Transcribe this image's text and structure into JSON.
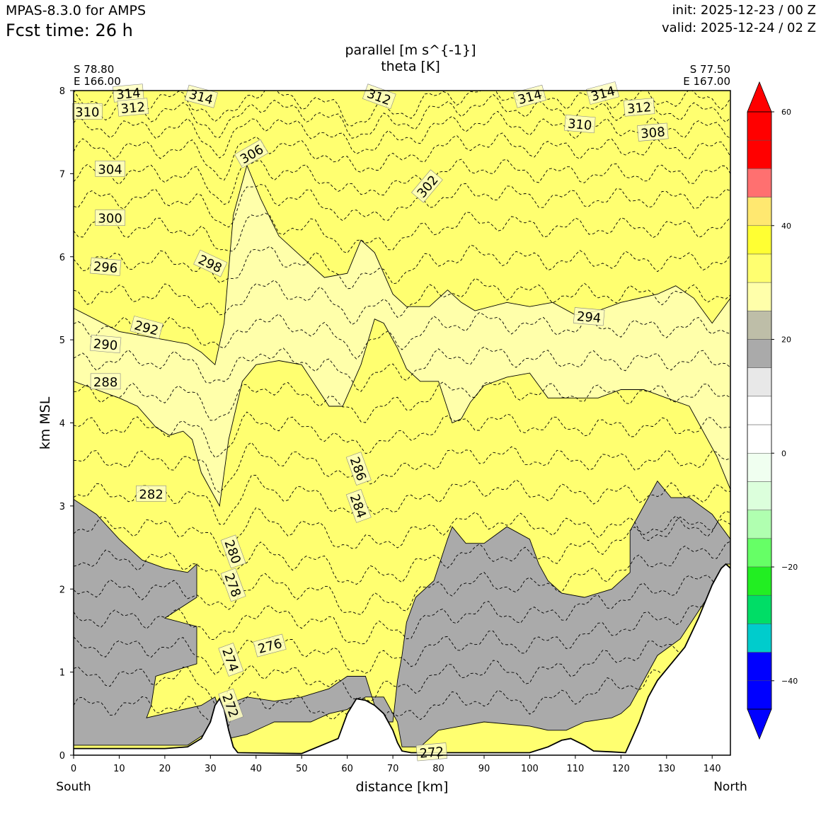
{
  "header": {
    "model": "MPAS-8.3.0 for AMPS",
    "fcst_time": "Fcst time:   26 h",
    "init": "init: 2025-12-23 / 00 Z",
    "valid": "valid: 2025-12-24 / 02 Z"
  },
  "chart_data": {
    "type": "heatmap",
    "title_lines": [
      "parallel [m s^{-1}]",
      "theta [K]"
    ],
    "xlabel": "distance [km]",
    "ylabel": "km MSL",
    "xlim": [
      0,
      144
    ],
    "ylim": [
      0,
      8
    ],
    "x_ticks": [
      0,
      10,
      20,
      30,
      40,
      50,
      60,
      70,
      80,
      90,
      100,
      110,
      120,
      130,
      140
    ],
    "y_ticks": [
      0,
      1,
      2,
      3,
      4,
      5,
      6,
      7,
      8
    ],
    "endpoints": {
      "left": {
        "lat": "S 78.80",
        "lon": "E 166.00",
        "direction": "South"
      },
      "right": {
        "lat": "S 77.50",
        "lon": "E 167.00",
        "direction": "North"
      }
    },
    "colorbar": {
      "ticks": [
        60,
        40,
        20,
        0,
        -20,
        -40
      ],
      "bins_top_to_bottom": [
        {
          "range": [
            55,
            60
          ],
          "color": "#ff0000"
        },
        {
          "range": [
            50,
            55
          ],
          "color": "#ff0000"
        },
        {
          "range": [
            45,
            50
          ],
          "color": "#ff7070"
        },
        {
          "range": [
            40,
            45
          ],
          "color": "#ffe870"
        },
        {
          "range": [
            35,
            40
          ],
          "color": "#ffff33"
        },
        {
          "range": [
            30,
            35
          ],
          "color": "#ffff70"
        },
        {
          "range": [
            25,
            30
          ],
          "color": "#ffffaa"
        },
        {
          "range": [
            20,
            25
          ],
          "color": "#bebea8"
        },
        {
          "range": [
            15,
            20
          ],
          "color": "#aaaaaa"
        },
        {
          "range": [
            10,
            15
          ],
          "color": "#e8e8e8"
        },
        {
          "range": [
            5,
            10
          ],
          "color": "#ffffff"
        },
        {
          "range": [
            0,
            5
          ],
          "color": "#ffffff"
        },
        {
          "range": [
            -5,
            0
          ],
          "color": "#f0fff0"
        },
        {
          "range": [
            -10,
            -5
          ],
          "color": "#dcffdc"
        },
        {
          "range": [
            -15,
            -10
          ],
          "color": "#b0ffb0"
        },
        {
          "range": [
            -20,
            -15
          ],
          "color": "#66ff66"
        },
        {
          "range": [
            -25,
            -20
          ],
          "color": "#22ee22"
        },
        {
          "range": [
            -30,
            -25
          ],
          "color": "#00dd66"
        },
        {
          "range": [
            -35,
            -30
          ],
          "color": "#00cccc"
        },
        {
          "range": [
            -40,
            -35
          ],
          "color": "#0000ff"
        },
        {
          "range": [
            -45,
            -40
          ],
          "color": "#0000ff"
        }
      ],
      "extend_top_color": "#ff0000",
      "extend_bottom_color": "#0000ff"
    },
    "wind_fill_bands": [
      {
        "level": 15,
        "color": "#aaaaaa",
        "boundary": [
          [
            0,
            3.08
          ],
          [
            5,
            2.9
          ],
          [
            10,
            2.6
          ],
          [
            15,
            2.35
          ],
          [
            20,
            2.25
          ],
          [
            25,
            2.2
          ],
          [
            27,
            2.3
          ],
          [
            27,
            1.9
          ],
          [
            20,
            1.65
          ],
          [
            27,
            1.55
          ],
          [
            27,
            1.1
          ],
          [
            18,
            0.95
          ],
          [
            17,
            0.6
          ],
          [
            16,
            0.45
          ],
          [
            20,
            0.5
          ],
          [
            28,
            0.6
          ],
          [
            31,
            0.7
          ],
          [
            34,
            0.2
          ],
          [
            38,
            0.25
          ],
          [
            44,
            0.4
          ],
          [
            52,
            0.4
          ],
          [
            56,
            0.5
          ],
          [
            60,
            0.55
          ],
          [
            64,
            0.7
          ],
          [
            68,
            0.7
          ],
          [
            71,
            0.4
          ],
          [
            72,
            0.1
          ],
          [
            76,
            0.1
          ],
          [
            80,
            0.3
          ],
          [
            90,
            0.4
          ],
          [
            100,
            0.35
          ],
          [
            104,
            0.3
          ],
          [
            108,
            0.3
          ],
          [
            112,
            0.4
          ],
          [
            118,
            0.45
          ],
          [
            120,
            0.5
          ],
          [
            122,
            0.6
          ],
          [
            124,
            0.8
          ],
          [
            126,
            1.0
          ],
          [
            128,
            1.2
          ],
          [
            133,
            1.4
          ],
          [
            139,
            1.9
          ],
          [
            143,
            2.3
          ],
          [
            144,
            2.3
          ],
          [
            144,
            2.6
          ],
          [
            140,
            2.9
          ],
          [
            135,
            3.1
          ],
          [
            131,
            3.1
          ],
          [
            128,
            3.3
          ],
          [
            125,
            3.0
          ],
          [
            122,
            2.7
          ],
          [
            122,
            2.2
          ],
          [
            118,
            2.0
          ],
          [
            112,
            1.9
          ],
          [
            107,
            1.95
          ],
          [
            104,
            2.1
          ],
          [
            102,
            2.3
          ],
          [
            100,
            2.6
          ],
          [
            95,
            2.75
          ],
          [
            90,
            2.55
          ],
          [
            86,
            2.55
          ],
          [
            83,
            2.75
          ],
          [
            82,
            2.6
          ],
          [
            79,
            2.1
          ],
          [
            75,
            1.9
          ],
          [
            73,
            1.6
          ],
          [
            72,
            1.2
          ],
          [
            71,
            0.9
          ],
          [
            70,
            0.4
          ],
          [
            68,
            0.4
          ],
          [
            66,
            0.6
          ],
          [
            64,
            0.95
          ],
          [
            60,
            0.95
          ],
          [
            56,
            0.8
          ],
          [
            50,
            0.7
          ],
          [
            44,
            0.65
          ],
          [
            38,
            0.7
          ],
          [
            33,
            0.6
          ],
          [
            30,
            0.3
          ],
          [
            25,
            0.12
          ],
          [
            0,
            0.12
          ]
        ]
      },
      {
        "level": 25,
        "color": "#ffffaa",
        "boundary": [
          [
            0,
            5.38
          ],
          [
            10,
            5.1
          ],
          [
            20,
            5.0
          ],
          [
            25,
            4.95
          ],
          [
            28,
            4.85
          ],
          [
            31,
            4.7
          ],
          [
            33,
            5.2
          ],
          [
            35,
            6.5
          ],
          [
            38,
            7.1
          ],
          [
            41,
            6.7
          ],
          [
            45,
            6.25
          ],
          [
            50,
            6.0
          ],
          [
            55,
            5.75
          ],
          [
            60,
            5.8
          ],
          [
            63,
            6.2
          ],
          [
            66,
            6.05
          ],
          [
            68,
            5.8
          ],
          [
            70,
            5.55
          ],
          [
            73,
            5.4
          ],
          [
            78,
            5.4
          ],
          [
            82,
            5.6
          ],
          [
            85,
            5.45
          ],
          [
            88,
            5.35
          ],
          [
            95,
            5.45
          ],
          [
            100,
            5.4
          ],
          [
            105,
            5.45
          ],
          [
            110,
            5.3
          ],
          [
            115,
            5.35
          ],
          [
            120,
            5.45
          ],
          [
            128,
            5.55
          ],
          [
            132,
            5.65
          ],
          [
            136,
            5.5
          ],
          [
            140,
            5.2
          ],
          [
            144,
            5.5
          ],
          [
            144,
            3.2
          ],
          [
            141,
            3.6
          ],
          [
            135,
            4.2
          ],
          [
            130,
            4.3
          ],
          [
            125,
            4.4
          ],
          [
            120,
            4.4
          ],
          [
            115,
            4.3
          ],
          [
            110,
            4.3
          ],
          [
            104,
            4.3
          ],
          [
            100,
            4.6
          ],
          [
            95,
            4.55
          ],
          [
            90,
            4.45
          ],
          [
            87,
            4.25
          ],
          [
            85,
            4.05
          ],
          [
            83,
            4.0
          ],
          [
            80,
            4.5
          ],
          [
            76,
            4.5
          ],
          [
            73,
            4.65
          ],
          [
            71,
            4.9
          ],
          [
            68,
            5.2
          ],
          [
            66,
            5.25
          ],
          [
            63,
            4.7
          ],
          [
            59,
            4.2
          ],
          [
            56,
            4.2
          ],
          [
            53,
            4.45
          ],
          [
            50,
            4.7
          ],
          [
            45,
            4.75
          ],
          [
            40,
            4.7
          ],
          [
            37,
            4.5
          ],
          [
            34,
            3.8
          ],
          [
            32,
            3.0
          ],
          [
            28,
            3.4
          ],
          [
            26,
            3.8
          ],
          [
            24,
            3.9
          ],
          [
            21,
            3.85
          ],
          [
            18,
            3.95
          ],
          [
            14,
            4.2
          ],
          [
            10,
            4.3
          ],
          [
            0,
            4.5
          ]
        ]
      }
    ],
    "theta_contours": [
      {
        "theta": 272,
        "baseline": 0.6
      },
      {
        "theta": 274,
        "baseline": 0.95
      },
      {
        "theta": 276,
        "baseline": 1.3
      },
      {
        "theta": 278,
        "baseline": 1.65
      },
      {
        "theta": 280,
        "baseline": 2.0
      },
      {
        "theta": 282,
        "baseline": 2.35
      },
      {
        "theta": 284,
        "baseline": 2.75
      },
      {
        "theta": 286,
        "baseline": 3.15
      },
      {
        "theta": 288,
        "baseline": 3.55
      },
      {
        "theta": 290,
        "baseline": 3.95
      },
      {
        "theta": 292,
        "baseline": 4.35
      },
      {
        "theta": 294,
        "baseline": 4.75
      },
      {
        "theta": 296,
        "baseline": 5.15
      },
      {
        "theta": 298,
        "baseline": 5.55
      },
      {
        "theta": 300,
        "baseline": 5.95
      },
      {
        "theta": 302,
        "baseline": 6.35
      },
      {
        "theta": 304,
        "baseline": 6.7
      },
      {
        "theta": 306,
        "baseline": 7.0
      },
      {
        "theta": 308,
        "baseline": 7.3
      },
      {
        "theta": 310,
        "baseline": 7.55
      },
      {
        "theta": 312,
        "baseline": 7.75
      },
      {
        "theta": 314,
        "baseline": 7.9
      }
    ],
    "contour_labels": [
      {
        "text": "314",
        "x": 12,
        "y": 7.97,
        "rot": -5
      },
      {
        "text": "312",
        "x": 13,
        "y": 7.8,
        "rot": -5
      },
      {
        "text": "310",
        "x": 3,
        "y": 7.75,
        "rot": 0
      },
      {
        "text": "314",
        "x": 28,
        "y": 7.93,
        "rot": 15
      },
      {
        "text": "312",
        "x": 67,
        "y": 7.93,
        "rot": 20
      },
      {
        "text": "314",
        "x": 100,
        "y": 7.93,
        "rot": -15
      },
      {
        "text": "314",
        "x": 116,
        "y": 7.97,
        "rot": -15
      },
      {
        "text": "312",
        "x": 124,
        "y": 7.8,
        "rot": -5
      },
      {
        "text": "310",
        "x": 111,
        "y": 7.6,
        "rot": 5
      },
      {
        "text": "308",
        "x": 127,
        "y": 7.5,
        "rot": -5
      },
      {
        "text": "306",
        "x": 39,
        "y": 7.24,
        "rot": -30
      },
      {
        "text": "304",
        "x": 8,
        "y": 7.06,
        "rot": 0
      },
      {
        "text": "302",
        "x": 77.5,
        "y": 6.85,
        "rot": -50
      },
      {
        "text": "300",
        "x": 8,
        "y": 6.47,
        "rot": 0
      },
      {
        "text": "298",
        "x": 30,
        "y": 5.92,
        "rot": 25
      },
      {
        "text": "296",
        "x": 7,
        "y": 5.88,
        "rot": 5
      },
      {
        "text": "294",
        "x": 113,
        "y": 5.28,
        "rot": 5
      },
      {
        "text": "292",
        "x": 16,
        "y": 5.15,
        "rot": 15
      },
      {
        "text": "290",
        "x": 7,
        "y": 4.95,
        "rot": 5
      },
      {
        "text": "288",
        "x": 7,
        "y": 4.5,
        "rot": 0
      },
      {
        "text": "286",
        "x": 62.5,
        "y": 3.45,
        "rot": 70
      },
      {
        "text": "284",
        "x": 62.5,
        "y": 3.0,
        "rot": 70
      },
      {
        "text": "282",
        "x": 17,
        "y": 3.15,
        "rot": 0
      },
      {
        "text": "280",
        "x": 35,
        "y": 2.45,
        "rot": 70
      },
      {
        "text": "278",
        "x": 35,
        "y": 2.05,
        "rot": 70
      },
      {
        "text": "276",
        "x": 43,
        "y": 1.32,
        "rot": -15
      },
      {
        "text": "274",
        "x": 34.5,
        "y": 1.15,
        "rot": 70
      },
      {
        "text": "272",
        "x": 34.5,
        "y": 0.6,
        "rot": 70
      },
      {
        "text": "272",
        "x": 78.5,
        "y": 0.04,
        "rot": -5
      }
    ],
    "terrain": [
      [
        0,
        0.08
      ],
      [
        20,
        0.08
      ],
      [
        25,
        0.1
      ],
      [
        28,
        0.2
      ],
      [
        30,
        0.4
      ],
      [
        31,
        0.6
      ],
      [
        32,
        0.68
      ],
      [
        33,
        0.55
      ],
      [
        34,
        0.3
      ],
      [
        35,
        0.1
      ],
      [
        36,
        0.03
      ],
      [
        50,
        0.02
      ],
      [
        58,
        0.2
      ],
      [
        60,
        0.5
      ],
      [
        62,
        0.68
      ],
      [
        64,
        0.66
      ],
      [
        66,
        0.6
      ],
      [
        68,
        0.5
      ],
      [
        70,
        0.3
      ],
      [
        71,
        0.15
      ],
      [
        72,
        0.05
      ],
      [
        74,
        0.03
      ],
      [
        100,
        0.03
      ],
      [
        104,
        0.1
      ],
      [
        107,
        0.18
      ],
      [
        109,
        0.2
      ],
      [
        112,
        0.12
      ],
      [
        114,
        0.05
      ],
      [
        118,
        0.04
      ],
      [
        121,
        0.03
      ],
      [
        122,
        0.15
      ],
      [
        124,
        0.4
      ],
      [
        126,
        0.7
      ],
      [
        128,
        0.9
      ],
      [
        131,
        1.1
      ],
      [
        134,
        1.3
      ],
      [
        137,
        1.65
      ],
      [
        140,
        2.05
      ],
      [
        142,
        2.25
      ],
      [
        143,
        2.3
      ],
      [
        144,
        2.25
      ]
    ]
  }
}
